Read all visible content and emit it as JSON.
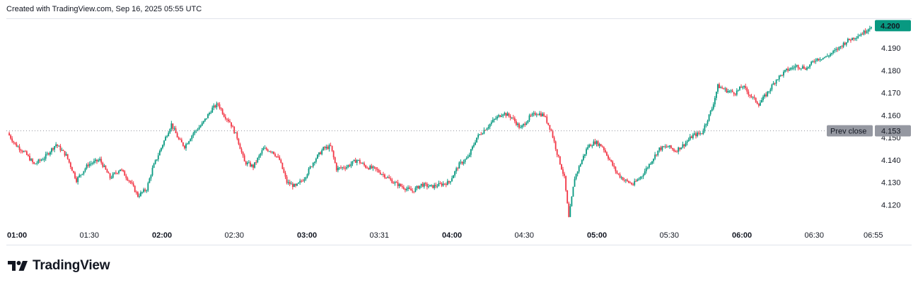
{
  "header": {
    "created_with": "Created with TradingView.com, Sep 16, 2025 05:55 UTC"
  },
  "brand": {
    "name": "TradingView",
    "logo_icon": "tradingview-logo-icon"
  },
  "chart_data": {
    "type": "candlestick",
    "x_tick_labels": [
      {
        "label": "01:00",
        "major": true
      },
      {
        "label": "01:30",
        "major": false
      },
      {
        "label": "02:00",
        "major": true
      },
      {
        "label": "02:30",
        "major": false
      },
      {
        "label": "03:00",
        "major": true
      },
      {
        "label": "03:31",
        "major": false
      },
      {
        "label": "04:00",
        "major": true
      },
      {
        "label": "04:30",
        "major": false
      },
      {
        "label": "05:00",
        "major": true
      },
      {
        "label": "05:30",
        "major": false
      },
      {
        "label": "06:00",
        "major": true
      },
      {
        "label": "06:30",
        "major": false
      },
      {
        "label": "06:55",
        "major": false
      }
    ],
    "y_ticks": [
      "4.120",
      "4.130",
      "4.140",
      "4.150",
      "4.160",
      "4.170",
      "4.180",
      "4.190"
    ],
    "ylim": [
      4.11,
      4.202
    ],
    "last_price": {
      "label": "4.200",
      "value": 4.2
    },
    "prev_close": {
      "label": "Prev close",
      "value_label": "4.153",
      "value": 4.153
    },
    "colors": {
      "up": "#089981",
      "down": "#f23645",
      "last_price_bg": "#089981",
      "prev_close_bg": "#9598a1",
      "text": "#131722"
    },
    "price_path": [
      [
        0,
        4.152
      ],
      [
        5,
        4.147
      ],
      [
        12,
        4.143
      ],
      [
        18,
        4.138
      ],
      [
        25,
        4.141
      ],
      [
        33,
        4.147
      ],
      [
        40,
        4.142
      ],
      [
        47,
        4.131
      ],
      [
        55,
        4.138
      ],
      [
        63,
        4.14
      ],
      [
        70,
        4.132
      ],
      [
        77,
        4.136
      ],
      [
        84,
        4.13
      ],
      [
        89,
        4.124
      ],
      [
        95,
        4.127
      ],
      [
        99,
        4.136
      ],
      [
        106,
        4.147
      ],
      [
        112,
        4.156
      ],
      [
        117,
        4.149
      ],
      [
        121,
        4.146
      ],
      [
        127,
        4.152
      ],
      [
        133,
        4.156
      ],
      [
        140,
        4.163
      ],
      [
        144,
        4.165
      ],
      [
        148,
        4.16
      ],
      [
        152,
        4.157
      ],
      [
        157,
        4.15
      ],
      [
        162,
        4.139
      ],
      [
        168,
        4.137
      ],
      [
        175,
        4.145
      ],
      [
        181,
        4.144
      ],
      [
        186,
        4.14
      ],
      [
        191,
        4.13
      ],
      [
        197,
        4.128
      ],
      [
        203,
        4.132
      ],
      [
        210,
        4.14
      ],
      [
        216,
        4.145
      ],
      [
        221,
        4.146
      ],
      [
        225,
        4.136
      ],
      [
        232,
        4.137
      ],
      [
        239,
        4.14
      ],
      [
        245,
        4.137
      ],
      [
        251,
        4.136
      ],
      [
        258,
        4.133
      ],
      [
        264,
        4.13
      ],
      [
        270,
        4.128
      ],
      [
        277,
        4.126
      ],
      [
        283,
        4.129
      ],
      [
        290,
        4.128
      ],
      [
        296,
        4.129
      ],
      [
        302,
        4.13
      ],
      [
        309,
        4.138
      ],
      [
        315,
        4.141
      ],
      [
        321,
        4.15
      ],
      [
        327,
        4.154
      ],
      [
        333,
        4.158
      ],
      [
        339,
        4.161
      ],
      [
        345,
        4.159
      ],
      [
        351,
        4.154
      ],
      [
        357,
        4.159
      ],
      [
        362,
        4.161
      ],
      [
        367,
        4.16
      ],
      [
        372,
        4.153
      ],
      [
        376,
        4.143
      ],
      [
        381,
        4.132
      ],
      [
        384,
        4.114
      ],
      [
        388,
        4.132
      ],
      [
        393,
        4.14
      ],
      [
        397,
        4.146
      ],
      [
        402,
        4.148
      ],
      [
        407,
        4.146
      ],
      [
        412,
        4.14
      ],
      [
        417,
        4.134
      ],
      [
        422,
        4.131
      ],
      [
        428,
        4.129
      ],
      [
        434,
        4.133
      ],
      [
        440,
        4.139
      ],
      [
        446,
        4.145
      ],
      [
        452,
        4.146
      ],
      [
        457,
        4.144
      ],
      [
        463,
        4.147
      ],
      [
        469,
        4.151
      ],
      [
        475,
        4.152
      ],
      [
        482,
        4.163
      ],
      [
        486,
        4.173
      ],
      [
        492,
        4.171
      ],
      [
        498,
        4.17
      ],
      [
        503,
        4.173
      ],
      [
        508,
        4.169
      ],
      [
        514,
        4.165
      ],
      [
        520,
        4.17
      ],
      [
        526,
        4.176
      ],
      [
        533,
        4.18
      ],
      [
        540,
        4.182
      ],
      [
        547,
        4.181
      ],
      [
        553,
        4.185
      ],
      [
        560,
        4.186
      ],
      [
        567,
        4.189
      ],
      [
        574,
        4.193
      ],
      [
        580,
        4.195
      ],
      [
        586,
        4.197
      ],
      [
        591,
        4.2
      ]
    ]
  }
}
